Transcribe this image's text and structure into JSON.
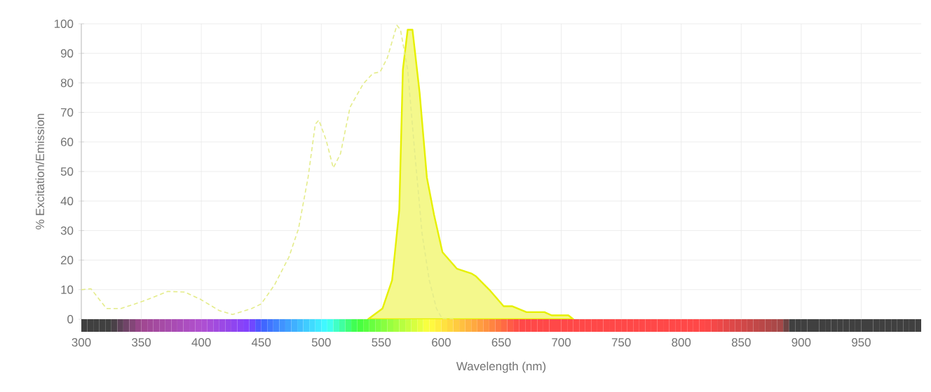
{
  "chart_data": {
    "type": "area",
    "xlabel": "Wavelength (nm)",
    "ylabel": "% Excitation/Emission",
    "xlim": [
      300,
      1000
    ],
    "ylim": [
      0,
      100
    ],
    "xticks": [
      300,
      350,
      400,
      450,
      500,
      550,
      600,
      650,
      700,
      750,
      800,
      850,
      900,
      950
    ],
    "yticks": [
      0,
      10,
      20,
      30,
      40,
      50,
      60,
      70,
      80,
      90,
      100
    ],
    "grid": true,
    "marker": "none",
    "series": [
      {
        "type": "line",
        "line_style": "dashed",
        "color": "#e4ec8a",
        "x": [
          300,
          308,
          321,
          333,
          345,
          356,
          372,
          386,
          399,
          415,
          426,
          442,
          450,
          461,
          473,
          481,
          489,
          495,
          498,
          504,
          510,
          516,
          524,
          535,
          543,
          549,
          555,
          563,
          566,
          572,
          578,
          584,
          590,
          596,
          601,
          610
        ],
        "values": [
          10,
          10.3,
          3.6,
          3.6,
          5.2,
          6.8,
          9.4,
          9.2,
          6.8,
          2.9,
          1.6,
          3.6,
          5.2,
          11.6,
          21,
          30.6,
          48,
          66,
          67.4,
          60.7,
          51.2,
          56,
          71.8,
          79.7,
          83.2,
          83.7,
          88.4,
          99.5,
          98,
          84.5,
          56,
          29,
          13.2,
          3.6,
          0,
          0
        ]
      },
      {
        "color": "#e6f000",
        "x": [
          539,
          551,
          559,
          565,
          568,
          572,
          576,
          582,
          588,
          594,
          601,
          613,
          625,
          629,
          640,
          652,
          659,
          671,
          686,
          692,
          706,
          710
        ],
        "values": [
          0,
          3.6,
          13.2,
          37,
          84.5,
          98,
          98,
          76.5,
          48,
          35.3,
          22.7,
          17.1,
          15.5,
          14.5,
          10,
          4.4,
          4.4,
          2.4,
          2.4,
          1.3,
          1.3,
          0
        ]
      }
    ]
  }
}
